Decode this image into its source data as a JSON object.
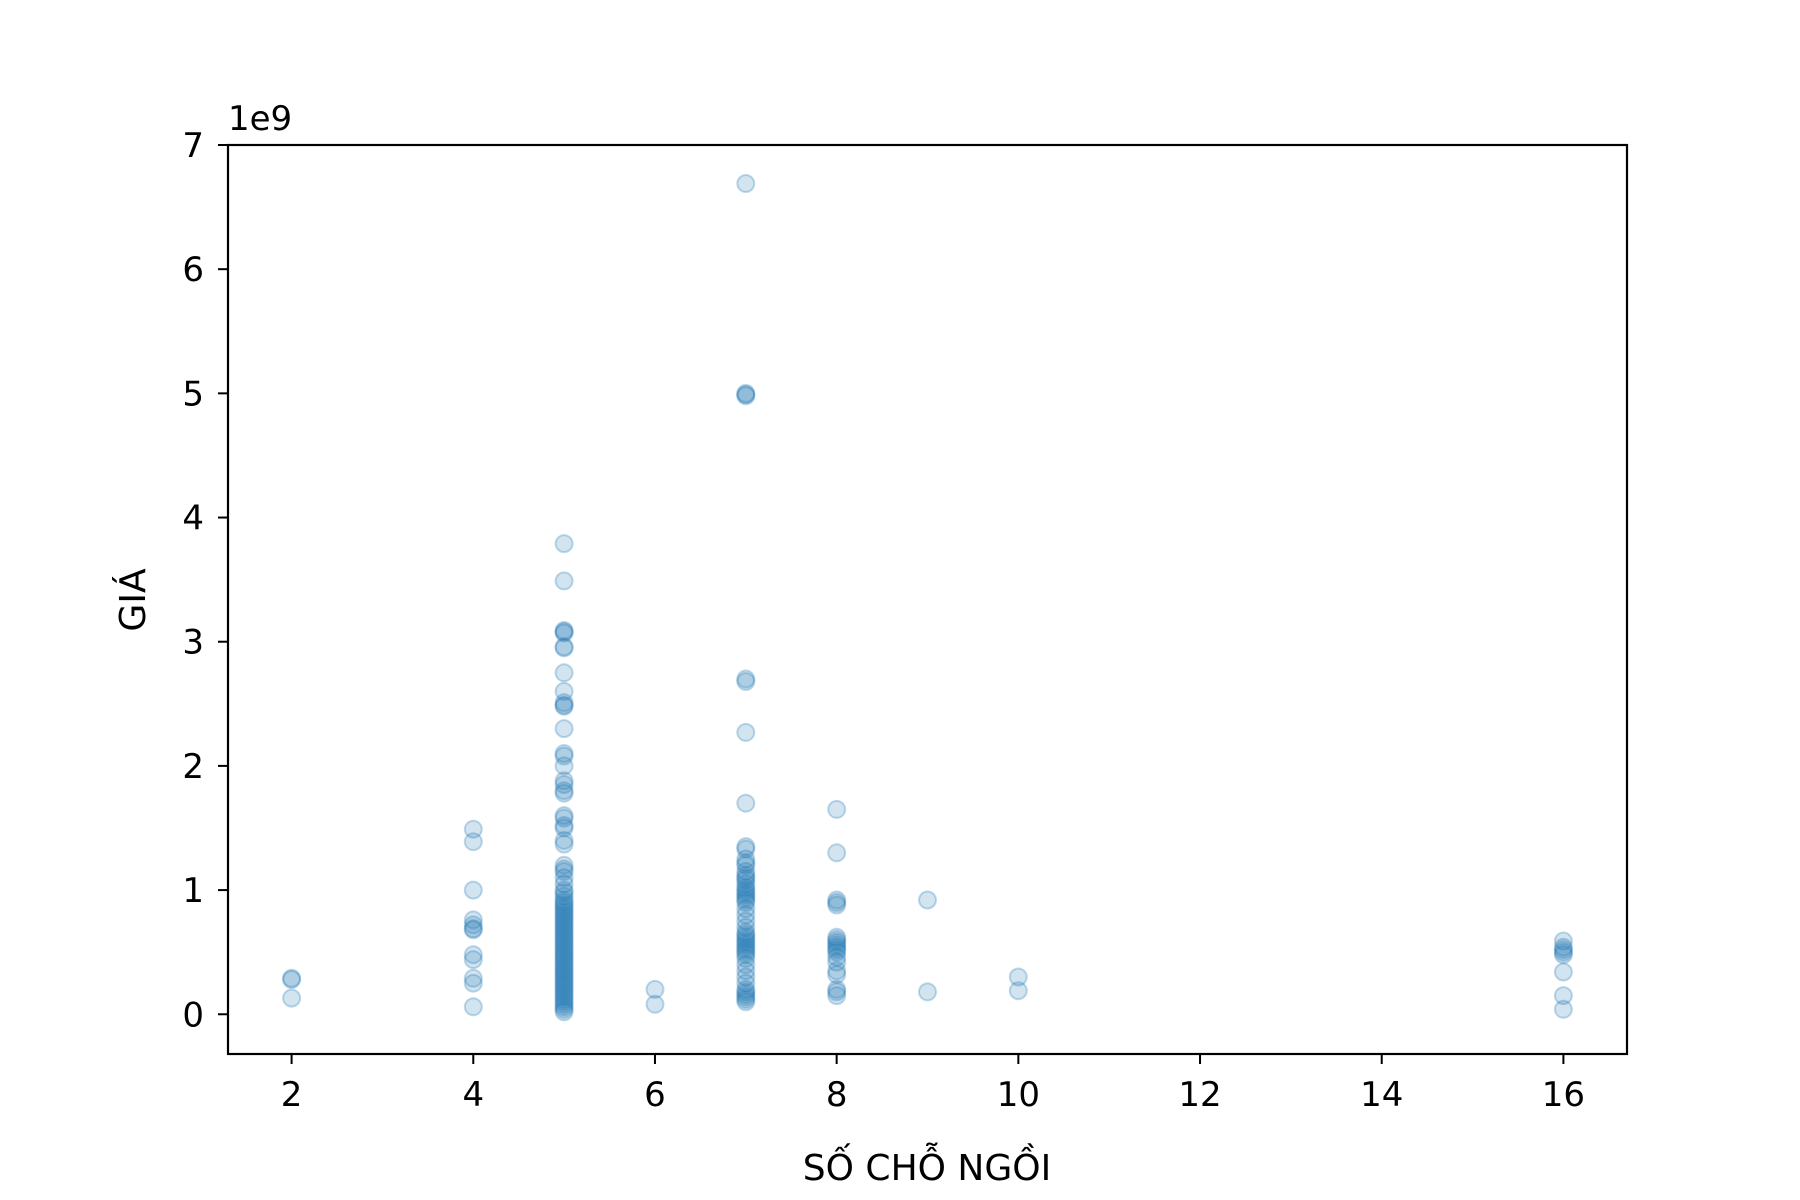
{
  "chart_data": {
    "type": "scatter",
    "xlabel": "SỐ CHỖ NGỒI",
    "ylabel": "GIÁ",
    "y_offset_label": "1e9",
    "y_scale": 1000000000,
    "xlim": [
      1.3,
      16.7
    ],
    "ylim": [
      -0.32,
      7.0
    ],
    "xticks": [
      2,
      4,
      6,
      8,
      10,
      12,
      14,
      16
    ],
    "yticks": [
      0,
      1,
      2,
      3,
      4,
      5,
      6,
      7
    ],
    "marker_color": "#1f77b4",
    "marker_alpha": 0.2,
    "grid": false,
    "legend": "none",
    "points": [
      [
        2,
        0.28
      ],
      [
        2,
        0.29
      ],
      [
        2,
        0.13
      ],
      [
        4,
        1.49
      ],
      [
        4,
        1.39
      ],
      [
        4,
        1.0
      ],
      [
        4,
        0.76
      ],
      [
        4,
        0.72
      ],
      [
        4,
        0.69
      ],
      [
        4,
        0.68
      ],
      [
        4,
        0.48
      ],
      [
        4,
        0.44
      ],
      [
        4,
        0.29
      ],
      [
        4,
        0.25
      ],
      [
        4,
        0.06
      ],
      [
        5,
        3.79
      ],
      [
        5,
        3.49
      ],
      [
        5,
        3.09
      ],
      [
        5,
        3.08
      ],
      [
        5,
        3.07
      ],
      [
        5,
        2.96
      ],
      [
        5,
        2.95
      ],
      [
        5,
        2.75
      ],
      [
        5,
        2.6
      ],
      [
        5,
        2.51
      ],
      [
        5,
        2.49
      ],
      [
        5,
        2.48
      ],
      [
        5,
        2.3
      ],
      [
        5,
        2.1
      ],
      [
        5,
        2.08
      ],
      [
        5,
        2.0
      ],
      [
        5,
        1.88
      ],
      [
        5,
        1.85
      ],
      [
        5,
        1.8
      ],
      [
        5,
        1.78
      ],
      [
        5,
        1.6
      ],
      [
        5,
        1.58
      ],
      [
        5,
        1.52
      ],
      [
        5,
        1.5
      ],
      [
        5,
        1.4
      ],
      [
        5,
        1.37
      ],
      [
        5,
        1.2
      ],
      [
        5,
        1.17
      ],
      [
        5,
        1.15
      ],
      [
        5,
        1.1
      ],
      [
        5,
        1.05
      ],
      [
        5,
        1.0
      ],
      [
        5,
        0.98
      ],
      [
        5,
        0.95
      ],
      [
        5,
        0.92
      ],
      [
        5,
        0.9
      ],
      [
        5,
        0.88
      ],
      [
        5,
        0.86
      ],
      [
        5,
        0.84
      ],
      [
        5,
        0.82
      ],
      [
        5,
        0.8
      ],
      [
        5,
        0.78
      ],
      [
        5,
        0.76
      ],
      [
        5,
        0.74
      ],
      [
        5,
        0.72
      ],
      [
        5,
        0.7
      ],
      [
        5,
        0.68
      ],
      [
        5,
        0.66
      ],
      [
        5,
        0.64
      ],
      [
        5,
        0.62
      ],
      [
        5,
        0.6
      ],
      [
        5,
        0.58
      ],
      [
        5,
        0.56
      ],
      [
        5,
        0.54
      ],
      [
        5,
        0.52
      ],
      [
        5,
        0.5
      ],
      [
        5,
        0.48
      ],
      [
        5,
        0.46
      ],
      [
        5,
        0.44
      ],
      [
        5,
        0.42
      ],
      [
        5,
        0.4
      ],
      [
        5,
        0.38
      ],
      [
        5,
        0.36
      ],
      [
        5,
        0.34
      ],
      [
        5,
        0.32
      ],
      [
        5,
        0.3
      ],
      [
        5,
        0.28
      ],
      [
        5,
        0.26
      ],
      [
        5,
        0.24
      ],
      [
        5,
        0.22
      ],
      [
        5,
        0.2
      ],
      [
        5,
        0.18
      ],
      [
        5,
        0.16
      ],
      [
        5,
        0.14
      ],
      [
        5,
        0.12
      ],
      [
        5,
        0.1
      ],
      [
        5,
        0.08
      ],
      [
        5,
        0.06
      ],
      [
        5,
        0.04
      ],
      [
        5,
        0.02
      ],
      [
        6,
        0.2
      ],
      [
        6,
        0.08
      ],
      [
        7,
        6.69
      ],
      [
        7,
        5.0
      ],
      [
        7,
        4.99
      ],
      [
        7,
        4.98
      ],
      [
        7,
        2.7
      ],
      [
        7,
        2.68
      ],
      [
        7,
        2.27
      ],
      [
        7,
        1.7
      ],
      [
        7,
        1.35
      ],
      [
        7,
        1.33
      ],
      [
        7,
        1.25
      ],
      [
        7,
        1.22
      ],
      [
        7,
        1.2
      ],
      [
        7,
        1.15
      ],
      [
        7,
        1.12
      ],
      [
        7,
        1.1
      ],
      [
        7,
        1.08
      ],
      [
        7,
        1.05
      ],
      [
        7,
        1.02
      ],
      [
        7,
        1.0
      ],
      [
        7,
        0.98
      ],
      [
        7,
        0.96
      ],
      [
        7,
        0.94
      ],
      [
        7,
        0.92
      ],
      [
        7,
        0.9
      ],
      [
        7,
        0.85
      ],
      [
        7,
        0.8
      ],
      [
        7,
        0.75
      ],
      [
        7,
        0.7
      ],
      [
        7,
        0.66
      ],
      [
        7,
        0.64
      ],
      [
        7,
        0.62
      ],
      [
        7,
        0.6
      ],
      [
        7,
        0.58
      ],
      [
        7,
        0.56
      ],
      [
        7,
        0.54
      ],
      [
        7,
        0.52
      ],
      [
        7,
        0.5
      ],
      [
        7,
        0.48
      ],
      [
        7,
        0.45
      ],
      [
        7,
        0.4
      ],
      [
        7,
        0.35
      ],
      [
        7,
        0.3
      ],
      [
        7,
        0.25
      ],
      [
        7,
        0.2
      ],
      [
        7,
        0.18
      ],
      [
        7,
        0.16
      ],
      [
        7,
        0.14
      ],
      [
        7,
        0.12
      ],
      [
        7,
        0.1
      ],
      [
        8,
        1.65
      ],
      [
        8,
        1.3
      ],
      [
        8,
        0.92
      ],
      [
        8,
        0.9
      ],
      [
        8,
        0.88
      ],
      [
        8,
        0.62
      ],
      [
        8,
        0.6
      ],
      [
        8,
        0.58
      ],
      [
        8,
        0.56
      ],
      [
        8,
        0.54
      ],
      [
        8,
        0.52
      ],
      [
        8,
        0.5
      ],
      [
        8,
        0.46
      ],
      [
        8,
        0.42
      ],
      [
        8,
        0.35
      ],
      [
        8,
        0.32
      ],
      [
        8,
        0.2
      ],
      [
        8,
        0.18
      ],
      [
        8,
        0.15
      ],
      [
        9,
        0.92
      ],
      [
        9,
        0.18
      ],
      [
        10,
        0.3
      ],
      [
        10,
        0.19
      ],
      [
        16,
        0.59
      ],
      [
        16,
        0.54
      ],
      [
        16,
        0.52
      ],
      [
        16,
        0.5
      ],
      [
        16,
        0.48
      ],
      [
        16,
        0.34
      ],
      [
        16,
        0.15
      ],
      [
        16,
        0.04
      ]
    ]
  }
}
